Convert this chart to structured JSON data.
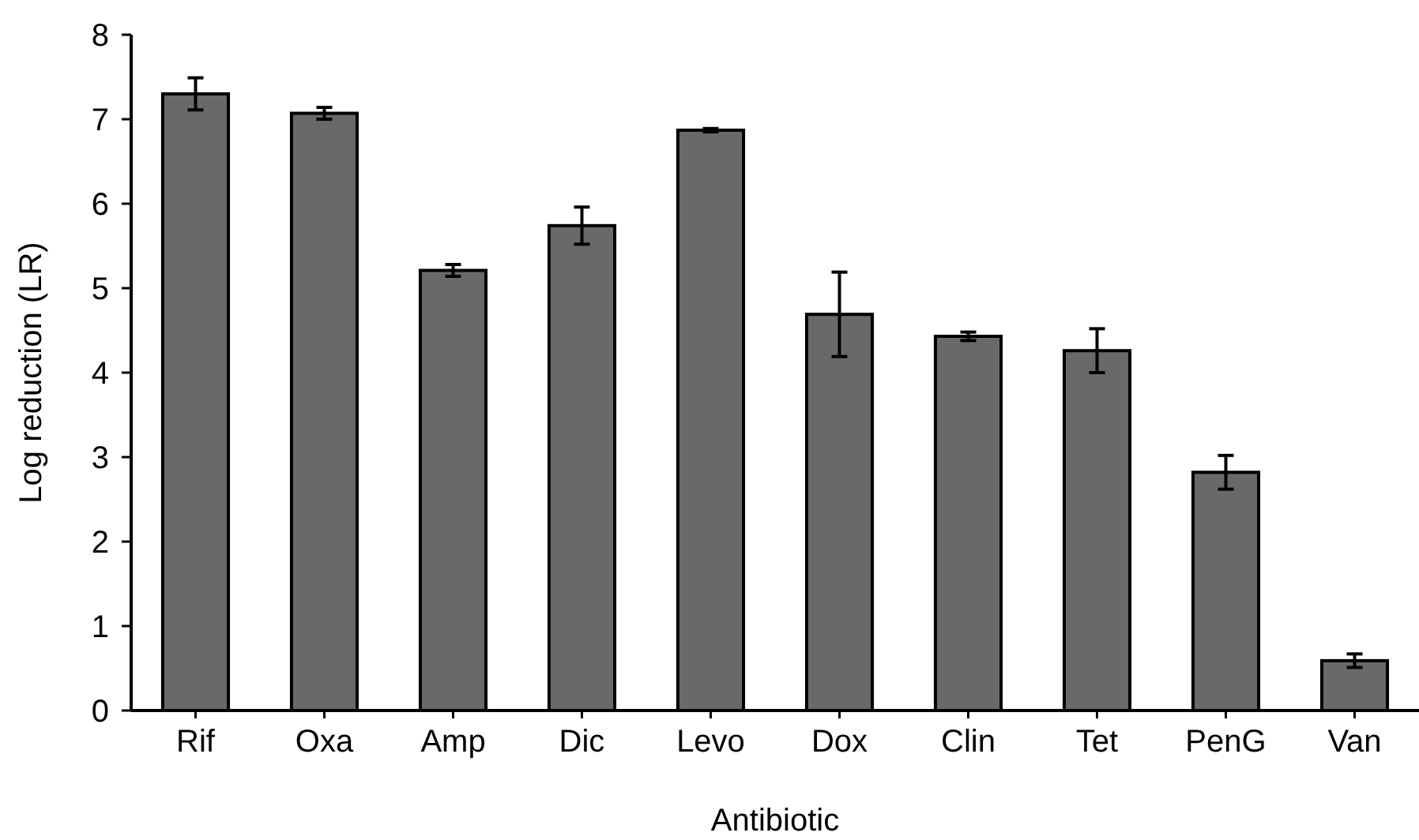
{
  "chart_data": {
    "type": "bar",
    "xlabel": "Antibiotic",
    "ylabel": "Log reduction (LR)",
    "categories": [
      "Rif",
      "Oxa",
      "Amp",
      "Dic",
      "Levo",
      "Dox",
      "Clin",
      "Tet",
      "PenG",
      "Van"
    ],
    "values": [
      7.3,
      7.07,
      5.21,
      5.74,
      6.87,
      4.69,
      4.43,
      4.26,
      2.82,
      0.59
    ],
    "errors": [
      0.19,
      0.07,
      0.07,
      0.22,
      0.02,
      0.5,
      0.05,
      0.26,
      0.2,
      0.08
    ],
    "color": "#696969",
    "ylim": [
      0,
      8
    ],
    "yticks": [
      0,
      1,
      2,
      3,
      4,
      5,
      6,
      7,
      8
    ],
    "grid": false
  }
}
